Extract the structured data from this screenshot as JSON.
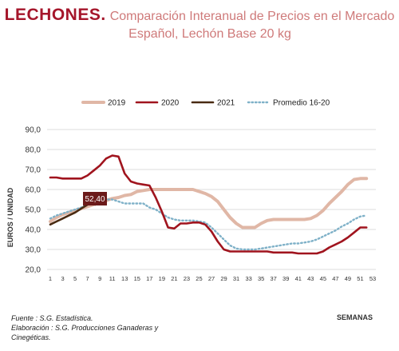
{
  "title": {
    "main": "LECHONES.",
    "line1": "Comparación Interanual de Precios en el Mercado",
    "line2": "Español, Lechón Base 20 kg"
  },
  "source": {
    "line1": "Fuente :  S.G. Estadística.",
    "line2": "Elaboración : S.G. Producciones Ganaderas y",
    "line3": "Cinegéticas."
  },
  "colors": {
    "s2019": "#e0b7a6",
    "s2020": "#a0141e",
    "s2021": "#4a2b12",
    "avg": "#7fb1c8",
    "callout_bg": "#6b1a1a",
    "grid": "#dcdcdc"
  },
  "chart_data": {
    "type": "line",
    "ylabel": "EUROS / UNIDAD",
    "xlabel": "SEMANAS",
    "ylim": [
      20,
      90
    ],
    "xlim": [
      1,
      53
    ],
    "yticks": [
      "20,0",
      "30,0",
      "40,0",
      "50,0",
      "60,0",
      "70,0",
      "80,0",
      "90,0"
    ],
    "xticks": [
      "1",
      "3",
      "5",
      "7",
      "9",
      "11",
      "13",
      "15",
      "17",
      "19",
      "21",
      "23",
      "25",
      "27",
      "29",
      "31",
      "33",
      "35",
      "37",
      "39",
      "41",
      "43",
      "45",
      "47",
      "49",
      "51",
      "53"
    ],
    "grid": "horizontal",
    "legend_position": "top",
    "annotation": {
      "text": "52,40",
      "x": 7,
      "y": 52.4
    },
    "series": [
      {
        "name": "2019",
        "x": [
          1,
          2,
          3,
          4,
          5,
          6,
          7,
          8,
          9,
          10,
          11,
          12,
          13,
          14,
          15,
          16,
          17,
          18,
          19,
          20,
          21,
          22,
          23,
          24,
          25,
          26,
          27,
          28,
          29,
          30,
          31,
          32,
          33,
          34,
          35,
          36,
          37,
          38,
          39,
          40,
          41,
          42,
          43,
          44,
          45,
          46,
          47,
          48,
          49,
          50,
          51,
          52
        ],
        "values": [
          44,
          46,
          47.5,
          48.5,
          49.5,
          50.5,
          51.5,
          52.5,
          53.5,
          54.5,
          55.5,
          56,
          57,
          57.5,
          59,
          59.5,
          60,
          60,
          60,
          60,
          60,
          60,
          60,
          60,
          59,
          58,
          56.5,
          54,
          50,
          46,
          43,
          41,
          41,
          41,
          43,
          44.5,
          45,
          45,
          45,
          45,
          45,
          45,
          45.5,
          47,
          49.5,
          53,
          56,
          59,
          62.5,
          65,
          65.5,
          65.5
        ]
      },
      {
        "name": "2020",
        "x": [
          1,
          2,
          3,
          4,
          5,
          6,
          7,
          8,
          9,
          10,
          11,
          12,
          13,
          14,
          15,
          16,
          17,
          18,
          19,
          20,
          21,
          22,
          23,
          24,
          25,
          26,
          27,
          28,
          29,
          30,
          31,
          32,
          33,
          34,
          35,
          36,
          37,
          38,
          39,
          40,
          41,
          42,
          43,
          44,
          45,
          46,
          47,
          48,
          49,
          50,
          51,
          52
        ],
        "values": [
          66,
          66,
          65.5,
          65.5,
          65.5,
          65.5,
          67,
          69.5,
          72,
          75.5,
          77,
          76.5,
          68,
          64,
          63,
          62.5,
          62,
          56,
          49,
          41,
          40.5,
          43,
          43,
          43.5,
          43.5,
          42.5,
          39,
          34,
          30,
          29,
          29,
          29,
          29,
          29,
          29,
          29,
          28.5,
          28.5,
          28.5,
          28.5,
          28,
          28,
          28,
          28,
          29,
          31,
          32.5,
          34,
          36,
          38.5,
          41,
          41
        ]
      },
      {
        "name": "2021",
        "x": [
          1,
          2,
          3,
          4,
          5,
          6,
          7
        ],
        "values": [
          42.5,
          44,
          45.5,
          47,
          48.5,
          50.5,
          52.4
        ]
      },
      {
        "name": "Promedio 16-20",
        "x": [
          1,
          2,
          3,
          4,
          5,
          6,
          7,
          8,
          9,
          10,
          11,
          12,
          13,
          14,
          15,
          16,
          17,
          18,
          19,
          20,
          21,
          22,
          23,
          24,
          25,
          26,
          27,
          28,
          29,
          30,
          31,
          32,
          33,
          34,
          35,
          36,
          37,
          38,
          39,
          40,
          41,
          42,
          43,
          44,
          45,
          46,
          47,
          48,
          49,
          50,
          51,
          52
        ],
        "values": [
          45.5,
          47,
          48,
          49,
          50,
          51,
          52.5,
          53.5,
          54,
          55,
          55,
          54,
          53,
          53,
          53,
          53,
          51,
          50,
          48,
          46,
          45,
          44.5,
          44.5,
          44.5,
          44,
          43.5,
          41,
          38,
          35,
          32,
          30.5,
          30,
          30,
          30,
          30.5,
          31,
          31.5,
          32,
          32.5,
          33,
          33,
          33.5,
          34,
          35,
          36.5,
          38,
          39.5,
          41.5,
          43,
          45,
          46.5,
          47
        ]
      }
    ]
  }
}
